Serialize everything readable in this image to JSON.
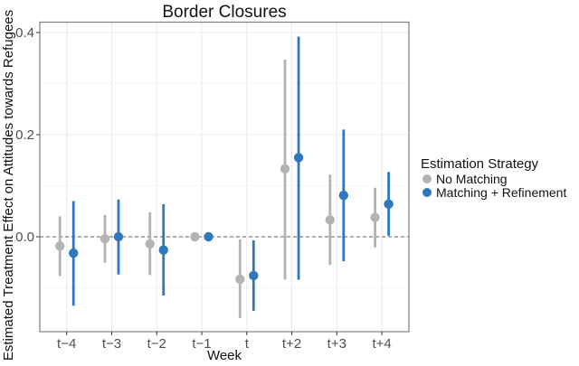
{
  "chart_data": {
    "type": "scatter",
    "subtype": "point-range (coefficient plot with confidence intervals)",
    "title": "Border Closures",
    "xlabel": "Week",
    "ylabel": "Estimated Treatment Effect on Attitudes towards Refugees",
    "categories": [
      "t−4",
      "t−3",
      "t−2",
      "t−1",
      "t",
      "t+2",
      "t+3",
      "t+4"
    ],
    "yticks": [
      "0.0",
      "0.2",
      "0.4"
    ],
    "ytick_values": [
      0.0,
      0.2,
      0.4
    ],
    "ylim": [
      -0.18,
      0.42
    ],
    "grid": true,
    "reference_line": {
      "y": 0.0,
      "style": "dashed"
    },
    "legend": {
      "title": "Estimation Strategy",
      "position": "right"
    },
    "series": [
      {
        "name": "No Matching",
        "color": "#b3b3b3",
        "values": [
          -0.018,
          -0.004,
          -0.014,
          0.0,
          -0.083,
          0.133,
          0.033,
          0.038
        ],
        "lower": [
          -0.077,
          -0.051,
          -0.075,
          0.0,
          -0.159,
          -0.084,
          -0.055,
          -0.021
        ],
        "upper": [
          0.04,
          0.043,
          0.048,
          0.0,
          -0.005,
          0.347,
          0.122,
          0.096
        ]
      },
      {
        "name": "Matching + Refinement",
        "color": "#2f78be",
        "values": [
          -0.032,
          0.0,
          -0.026,
          0.0,
          -0.076,
          0.155,
          0.081,
          0.064
        ],
        "lower": [
          -0.135,
          -0.074,
          -0.115,
          0.0,
          -0.145,
          -0.084,
          -0.048,
          0.002
        ],
        "upper": [
          0.07,
          0.073,
          0.064,
          0.0,
          -0.007,
          0.392,
          0.21,
          0.127
        ]
      }
    ]
  }
}
